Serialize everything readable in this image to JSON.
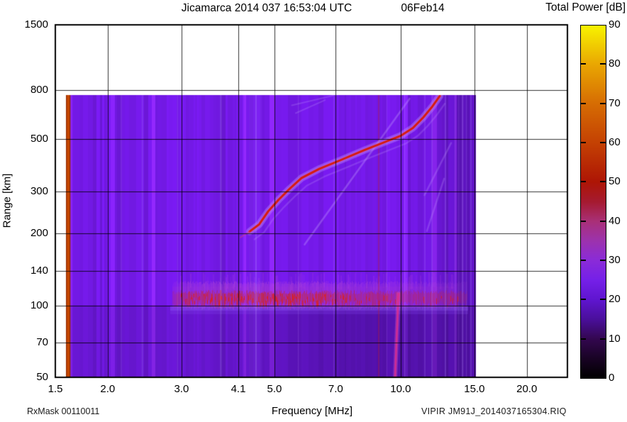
{
  "chart_data": {
    "type": "heatmap",
    "title": "Jicamarca 2014 037 16:53:04 UTC",
    "date_label": "06Feb14",
    "xlabel": "Frequency [MHz]",
    "ylabel": "Range [km]",
    "x_scale": "log",
    "xlim": [
      1.5,
      25.0
    ],
    "x_tick_values": [
      1.5,
      2.0,
      3.0,
      4.1,
      5.0,
      7.0,
      10.0,
      15.0,
      20.0
    ],
    "x_tick_labels": [
      "1.5",
      "2.0",
      "3.0",
      "4.1",
      "5.0",
      "7.0",
      "10.0",
      "15.0",
      "20.0"
    ],
    "y_scale": "log",
    "ylim": [
      50,
      1500
    ],
    "y_tick_values": [
      50,
      70,
      100,
      140,
      200,
      300,
      500,
      800,
      1500
    ],
    "y_tick_labels": [
      "50",
      "70",
      "100",
      "140",
      "200",
      "300",
      "500",
      "800",
      "1500"
    ],
    "grid": true,
    "colorbar": {
      "label": "Total Power [dB]",
      "range": [
        0,
        90
      ],
      "tick_values": [
        0,
        10,
        20,
        30,
        40,
        50,
        60,
        70,
        80,
        90
      ],
      "palette": [
        {
          "db": 90,
          "color": "#f8f300"
        },
        {
          "db": 80,
          "color": "#e9a602"
        },
        {
          "db": 70,
          "color": "#d66c03"
        },
        {
          "db": 60,
          "color": "#c44103"
        },
        {
          "db": 50,
          "color": "#ad1505"
        },
        {
          "db": 45,
          "color": "#a51a30"
        },
        {
          "db": 40,
          "color": "#a93078"
        },
        {
          "db": 35,
          "color": "#9c32ad"
        },
        {
          "db": 30,
          "color": "#8a2bd8"
        },
        {
          "db": 25,
          "color": "#7520e8"
        },
        {
          "db": 20,
          "color": "#5f15cf"
        },
        {
          "db": 15,
          "color": "#4a0f9b"
        },
        {
          "db": 10,
          "color": "#33074f"
        },
        {
          "db": 5,
          "color": "#190325"
        },
        {
          "db": 0,
          "color": "#000000"
        }
      ]
    },
    "data_extent": {
      "f_min_mhz": 1.59,
      "f_max_mhz": 15.1,
      "r_min_km": 50,
      "r_max_km": 760
    },
    "background_level_db": 23,
    "features": {
      "calibration_stripe": {
        "f_mhz": [
          1.59,
          1.63
        ],
        "color": "#d85200"
      },
      "e_region_band": {
        "f_start_mhz": 2.85,
        "f_full_mhz": 3.1,
        "f_decay_mhz": 5.9,
        "f_end_mhz": 14.4,
        "center_km": 108,
        "top_km": 126,
        "bottom_km": 100,
        "peak_db": 50
      },
      "f_trace_km": [
        [
          4.36,
          204
        ],
        [
          4.6,
          219
        ],
        [
          4.83,
          248
        ],
        [
          5.12,
          278
        ],
        [
          5.43,
          308
        ],
        [
          5.8,
          342
        ],
        [
          6.4,
          374
        ],
        [
          7.2,
          407
        ],
        [
          8.2,
          448
        ],
        [
          9.25,
          487
        ],
        [
          10.0,
          514
        ],
        [
          10.7,
          555
        ],
        [
          11.3,
          611
        ],
        [
          11.9,
          682
        ],
        [
          12.4,
          755
        ]
      ],
      "oblique_echo_km": [
        [
          5.9,
          180
        ],
        [
          10.5,
          735
        ]
      ],
      "upper_faint_echoes_km": [
        [
          [
            5.5,
            690
          ],
          [
            6.9,
            758
          ]
        ],
        [
          [
            5.62,
            640
          ],
          [
            6.6,
            726
          ]
        ]
      ],
      "right_faint_streaks_km": [
        [
          [
            13.2,
            480
          ],
          [
            11.4,
            290
          ]
        ],
        [
          [
            12.7,
            340
          ],
          [
            11.55,
            205
          ]
        ]
      ],
      "sporadic_slant_km": [
        [
          9.88,
          112
        ],
        [
          9.7,
          50
        ]
      ],
      "rfi_line_mhz": 8.84,
      "bright_stripes_mhz": [
        2.15,
        2.41,
        2.93,
        3.71,
        4.5,
        5.69,
        6.91,
        9.25,
        10.21,
        11.38,
        11.83,
        12.74,
        13.46,
        13.73,
        14.0,
        14.33,
        14.66
      ],
      "dark_region_below_km": 100
    },
    "annotations": {
      "rx_mask": "RxMask 00110011",
      "file_label": "VIPIR  JM91J_2014037165304.RIQ"
    }
  }
}
